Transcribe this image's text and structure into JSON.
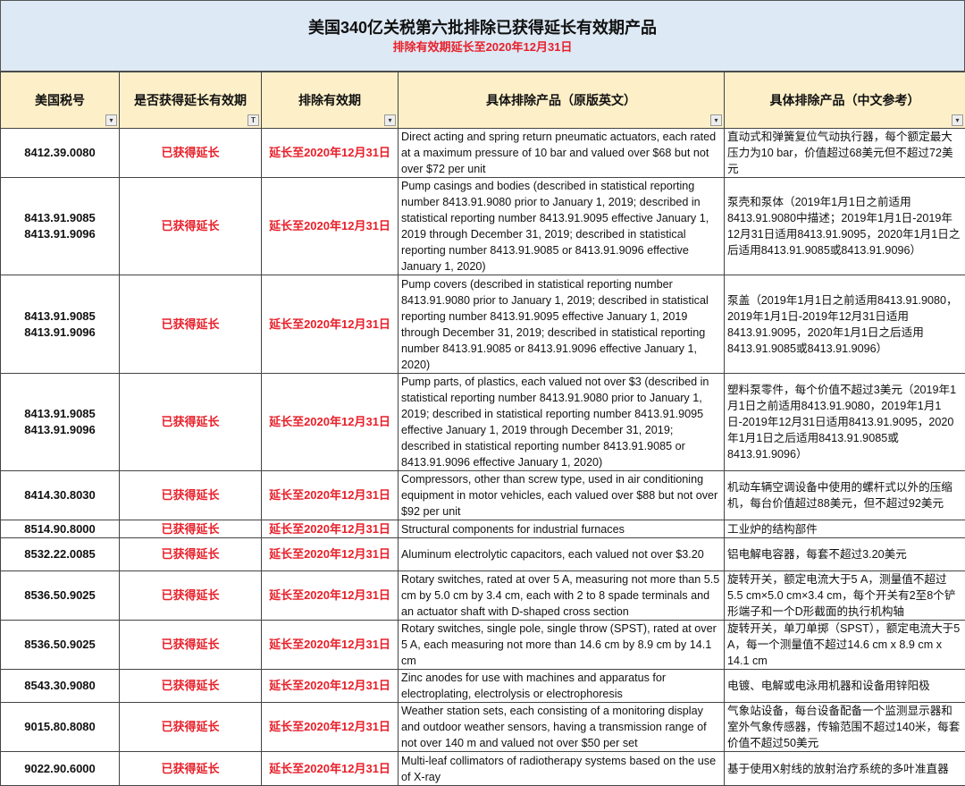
{
  "title": "美国340亿关税第六批排除已获得延长有效期产品",
  "subtitle": "排除有效期延长至2020年12月31日",
  "colors": {
    "accent_red": "#e8202a",
    "title_bg": "#dde9f5",
    "header_bg": "#fdf0c8"
  },
  "headers": [
    "美国税号",
    "是否获得延长有效期",
    "排除有效期",
    "具体排除产品（原版英文）",
    "具体排除产品（中文参考）"
  ],
  "filter_icons": [
    "dropdown-arrow-icon",
    "filter-active-icon",
    "dropdown-arrow-icon",
    "dropdown-arrow-icon",
    "dropdown-arrow-icon"
  ],
  "rows": [
    {
      "code": "8412.39.0080",
      "status": "已获得延长",
      "validity": "延长至2020年12月31日",
      "en": "Direct acting and spring return pneumatic actuators, each rated at a maximum pressure of 10 bar and valued over $68 but not over $72 per unit",
      "cn": "直动式和弹簧复位气动执行器，每个额定最大压力为10 bar，价值超过68美元但不超过72美元"
    },
    {
      "code": "8413.91.9085\n8413.91.9096",
      "status": "已获得延长",
      "validity": "延长至2020年12月31日",
      "en": "Pump casings and bodies (described in statistical reporting number 8413.91.9080 prior to January 1, 2019; described in statistical reporting number 8413.91.9095 effective January 1, 2019 through December 31, 2019; described in statistical reporting number 8413.91.9085 or 8413.91.9096 effective January 1, 2020)",
      "cn": "泵壳和泵体（2019年1月1日之前适用8413.91.9080中描述；2019年1月1日-2019年12月31日适用8413.91.9095，2020年1月1日之后适用8413.91.9085或8413.91.9096）"
    },
    {
      "code": "8413.91.9085\n8413.91.9096",
      "status": "已获得延长",
      "validity": "延长至2020年12月31日",
      "en": "Pump covers (described in statistical reporting number 8413.91.9080 prior to January 1, 2019; described in statistical reporting number 8413.91.9095 effective January 1, 2019 through December 31, 2019; described in statistical reporting number 8413.91.9085 or 8413.91.9096 effective January 1, 2020)",
      "cn": "泵盖（2019年1月1日之前适用8413.91.9080，2019年1月1日-2019年12月31日适用8413.91.9095，2020年1月1日之后适用8413.91.9085或8413.91.9096）"
    },
    {
      "code": "8413.91.9085\n8413.91.9096",
      "status": "已获得延长",
      "validity": "延长至2020年12月31日",
      "en": "Pump parts, of plastics, each valued not over $3 (described in statistical reporting number 8413.91.9080 prior to January 1, 2019; described in statistical reporting number 8413.91.9095 effective January 1, 2019 through December 31, 2019; described in statistical reporting number 8413.91.9085 or 8413.91.9096 effective January 1, 2020)",
      "cn": "塑料泵零件，每个价值不超过3美元（2019年1月1日之前适用8413.91.9080，2019年1月1日-2019年12月31日适用8413.91.9095，2020年1月1日之后适用8413.91.9085或8413.91.9096）"
    },
    {
      "code": "8414.30.8030",
      "status": "已获得延长",
      "validity": "延长至2020年12月31日",
      "en": "Compressors, other than screw type, used in air conditioning equipment in motor vehicles, each valued over $88 but not over $92 per unit",
      "cn": "机动车辆空调设备中使用的螺杆式以外的压缩机，每台价值超过88美元，但不超过92美元"
    },
    {
      "code": "8514.90.8000",
      "status": "已获得延长",
      "validity": "延长至2020年12月31日",
      "en": "Structural components for industrial furnaces",
      "cn": "工业炉的结构部件"
    },
    {
      "code": "8532.22.0085",
      "status": "已获得延长",
      "validity": "延长至2020年12月31日",
      "en": "Aluminum electrolytic capacitors, each valued not over $3.20",
      "cn": "铝电解电容器，每套不超过3.20美元"
    },
    {
      "code": "8536.50.9025",
      "status": "已获得延长",
      "validity": "延长至2020年12月31日",
      "en": "Rotary switches, rated at over 5 A, measuring not more than 5.5 cm by 5.0 cm by 3.4 cm, each with 2 to 8 spade terminals and an actuator shaft with D-shaped cross section",
      "cn": "旋转开关，额定电流大于5 A，测量值不超过5.5 cm×5.0 cm×3.4 cm，每个开关有2至8个铲形端子和一个D形截面的执行机构轴"
    },
    {
      "code": "8536.50.9025",
      "status": "已获得延长",
      "validity": "延长至2020年12月31日",
      "en": "Rotary switches, single pole, single throw (SPST), rated at over 5 A, each measuring not more than 14.6 cm by 8.9 cm by 14.1 cm",
      "cn": "旋转开关，单刀单掷（SPST），额定电流大于5 A，每一个测量值不超过14.6 cm x 8.9 cm x 14.1 cm"
    },
    {
      "code": "8543.30.9080",
      "status": "已获得延长",
      "validity": "延长至2020年12月31日",
      "en": "Zinc anodes for use with machines and apparatus for electroplating, electrolysis or electrophoresis",
      "cn": "电镀、电解或电泳用机器和设备用锌阳极"
    },
    {
      "code": "9015.80.8080",
      "status": "已获得延长",
      "validity": "延长至2020年12月31日",
      "en": "Weather station sets, each consisting of a monitoring display and outdoor weather sensors, having a transmission range of not over 140 m and valued not over $50 per set",
      "cn": "气象站设备，每台设备配备一个监测显示器和室外气象传感器，传输范围不超过140米，每套价值不超过50美元"
    },
    {
      "code": "9022.90.6000",
      "status": "已获得延长",
      "validity": "延长至2020年12月31日",
      "en": "Multi-leaf collimators of radiotherapy systems based on the use of X-ray",
      "cn": "基于使用X射线的放射治疗系统的多叶准直器"
    }
  ]
}
